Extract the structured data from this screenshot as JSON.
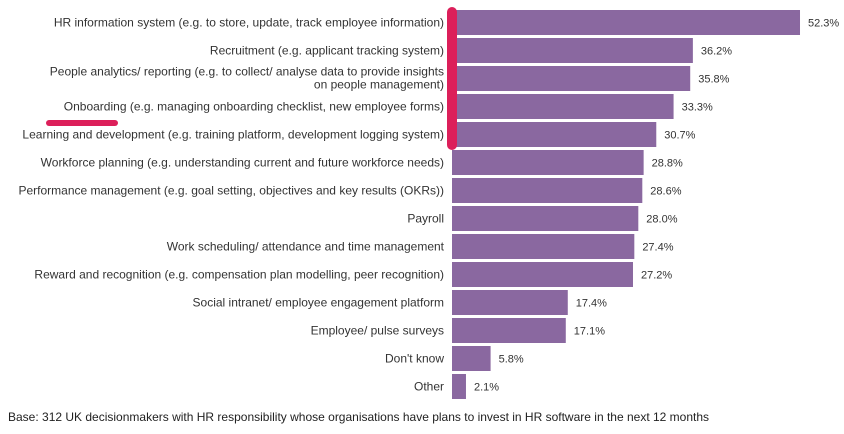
{
  "colors": {
    "bar": "#8A68A0",
    "highlight": "#DC1F5A",
    "text": "#333333"
  },
  "chart_data": {
    "type": "bar",
    "orientation": "horizontal",
    "title": "",
    "xlabel": "",
    "ylabel": "",
    "xlim": [
      0,
      100
    ],
    "grid": false,
    "legend": "none",
    "value_suffix": "%",
    "categories": [
      [
        "HR information system (e.g. to store, update, track employee information)"
      ],
      [
        "Recruitment (e.g. applicant tracking system)"
      ],
      [
        "People analytics/ reporting (e.g. to collect/ analyse data to provide insights",
        "on people management)"
      ],
      [
        "Onboarding (e.g. managing onboarding checklist, new employee forms)"
      ],
      [
        "Learning and development (e.g. training platform, development logging system)"
      ],
      [
        "Workforce planning (e.g. understanding current and future workforce needs)"
      ],
      [
        "Performance management (e.g. goal setting, objectives and key results (OKRs))"
      ],
      [
        "Payroll"
      ],
      [
        "Work scheduling/ attendance and time management"
      ],
      [
        "Reward and recognition (e.g. compensation plan modelling, peer recognition)"
      ],
      [
        "Social intranet/ employee engagement platform"
      ],
      [
        "Employee/ pulse surveys"
      ],
      [
        "Don't know"
      ],
      [
        "Other"
      ]
    ],
    "values": [
      52.3,
      36.2,
      35.8,
      33.3,
      30.7,
      28.8,
      28.6,
      28.0,
      27.4,
      27.2,
      17.4,
      17.1,
      5.8,
      2.1
    ],
    "value_labels": [
      "52.3%",
      "36.2%",
      "35.8%",
      "33.3%",
      "30.7%",
      "28.8%",
      "28.6%",
      "28.0%",
      "27.4%",
      "27.2%",
      "17.4%",
      "17.1%",
      "5.8%",
      "2.1%"
    ],
    "annotations": {
      "highlight_bracket_rows": [
        0,
        4
      ],
      "underlined_word": "Onboarding",
      "underlined_row": 3
    }
  },
  "footer": {
    "base_note": "Base: 312 UK decisionmakers with HR responsibility whose organisations have plans to invest in HR software in the next 12 months"
  }
}
